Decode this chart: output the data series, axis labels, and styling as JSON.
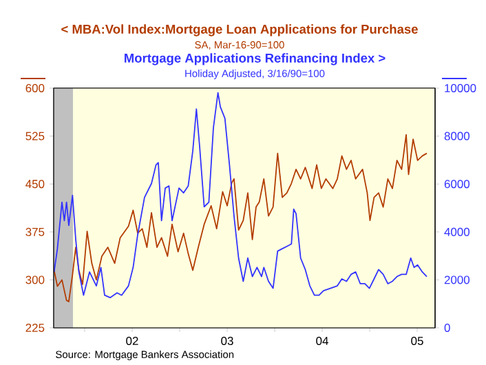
{
  "chart_data": {
    "type": "line",
    "marker": "none",
    "legend": "top",
    "series": [
      {
        "name": "< MBA:Vol Index:Mortgage Loan Applications for Purchase",
        "color": "#b33c00",
        "axis": "y",
        "x": [
          2001.178,
          2001.213,
          2001.261,
          2001.309,
          2001.333,
          2001.372,
          2001.406,
          2001.439,
          2001.478,
          2001.526,
          2001.575,
          2001.623,
          2001.681,
          2001.744,
          2001.816,
          2001.874,
          2001.961,
          2002.01,
          2002.058,
          2002.106,
          2002.155,
          2002.203,
          2002.261,
          2002.309,
          2002.372,
          2002.42,
          2002.483,
          2002.541,
          2002.59,
          2002.638,
          2002.696,
          2002.758,
          2002.831,
          2002.889,
          2002.952,
          2003.0,
          2003.048,
          2003.072,
          2003.12,
          2003.169,
          2003.217,
          2003.265,
          2003.304,
          2003.338,
          2003.386,
          2003.435,
          2003.483,
          2003.531,
          2003.58,
          2003.628,
          2003.676,
          2003.725,
          2003.773,
          2003.822,
          2003.894,
          2003.942,
          2003.991,
          2004.039,
          2004.112,
          2004.159,
          2004.207,
          2004.256,
          2004.304,
          2004.352,
          2004.425,
          2004.474,
          2004.503,
          2004.546,
          2004.594,
          2004.642,
          2004.691,
          2004.739,
          2004.787,
          2004.836,
          2004.884,
          2004.909,
          2004.957,
          2005.004,
          2005.054,
          2005.101
        ],
        "values": [
          315,
          290,
          300,
          268,
          266,
          308,
          351,
          315,
          293,
          376,
          326,
          300,
          337,
          351,
          326,
          366,
          384,
          409,
          373,
          380,
          351,
          405,
          351,
          366,
          337,
          387,
          344,
          373,
          341,
          315,
          351,
          387,
          416,
          380,
          438,
          416,
          452,
          458,
          378,
          393,
          436,
          363,
          414,
          422,
          458,
          400,
          414,
          498,
          429,
          436,
          451,
          473,
          458,
          476,
          443,
          480,
          443,
          458,
          443,
          458,
          494,
          473,
          487,
          458,
          473,
          436,
          393,
          429,
          436,
          414,
          458,
          443,
          487,
          473,
          527,
          465,
          520,
          487,
          494,
          498
        ]
      },
      {
        "name": "Mortgage Applications Refinancing Index  >",
        "color": "#3333ff",
        "axis": "y2",
        "x": [
          2001.178,
          2001.213,
          2001.261,
          2001.286,
          2001.309,
          2001.333,
          2001.372,
          2001.406,
          2001.439,
          2001.488,
          2001.551,
          2001.623,
          2001.671,
          2001.71,
          2001.768,
          2001.841,
          2001.889,
          2001.961,
          2002.01,
          2002.058,
          2002.13,
          2002.203,
          2002.251,
          2002.275,
          2002.309,
          2002.348,
          2002.387,
          2002.42,
          2002.493,
          2002.541,
          2002.59,
          2002.638,
          2002.676,
          2002.71,
          2002.758,
          2002.807,
          2002.855,
          2002.903,
          2002.928,
          2002.976,
          2003.024,
          2003.072,
          2003.12,
          2003.169,
          2003.217,
          2003.265,
          2003.314,
          2003.362,
          2003.386,
          2003.435,
          2003.483,
          2003.531,
          2003.58,
          2003.628,
          2003.676,
          2003.7,
          2003.725,
          2003.773,
          2003.822,
          2003.87,
          2003.918,
          2003.967,
          2004.014,
          2004.087,
          2004.159,
          2004.207,
          2004.256,
          2004.304,
          2004.352,
          2004.401,
          2004.449,
          2004.497,
          2004.546,
          2004.594,
          2004.642,
          2004.691,
          2004.739,
          2004.787,
          2004.836,
          2004.884,
          2004.932,
          2004.967,
          2005.004,
          2005.054,
          2005.101
        ],
        "values": [
          2330,
          3300,
          5240,
          4470,
          5240,
          4270,
          5530,
          3690,
          2330,
          1360,
          2330,
          1750,
          2520,
          1360,
          1260,
          1460,
          1360,
          1750,
          2520,
          3880,
          5440,
          6020,
          6800,
          6890,
          4470,
          5830,
          5920,
          4470,
          5830,
          5630,
          5920,
          7380,
          9130,
          7570,
          5050,
          5240,
          8350,
          9810,
          9220,
          8740,
          6800,
          4660,
          2910,
          1940,
          2910,
          2140,
          2520,
          2140,
          2520,
          1940,
          1650,
          3200,
          3300,
          3400,
          3500,
          4950,
          4760,
          2910,
          2430,
          1750,
          1360,
          1360,
          1550,
          1650,
          1750,
          2040,
          1940,
          2230,
          2330,
          1840,
          1840,
          1650,
          2040,
          2430,
          2230,
          1840,
          1940,
          2140,
          2230,
          2230,
          2910,
          2520,
          2620,
          2330,
          2140
        ]
      }
    ],
    "xlim": [
      2001.174,
      2005.188
    ],
    "xticks": [
      {
        "value": 2001.5,
        "label": null
      },
      {
        "value": 2002,
        "label": "02"
      },
      {
        "value": 2002.5,
        "label": null
      },
      {
        "value": 2003,
        "label": "03"
      },
      {
        "value": 2003.5,
        "label": null
      },
      {
        "value": 2004,
        "label": "04"
      },
      {
        "value": 2004.5,
        "label": null
      },
      {
        "value": 2005,
        "label": "05"
      }
    ],
    "ylim": [
      225,
      600
    ],
    "yticks": [
      225,
      300,
      375,
      450,
      525,
      600
    ],
    "y2lim": [
      0,
      10000
    ],
    "y2ticks": [
      0,
      2000,
      4000,
      6000,
      8000,
      10000
    ],
    "bands": [
      {
        "axis": "x",
        "from": 2001.174,
        "to": 2001.377,
        "color": "#c0c0c0"
      }
    ],
    "annotations": [
      "SA, Mar-16-90=100",
      "Holiday Adjusted, 3/16/90=100",
      "Source:  Mortgage Bankers Association"
    ]
  }
}
